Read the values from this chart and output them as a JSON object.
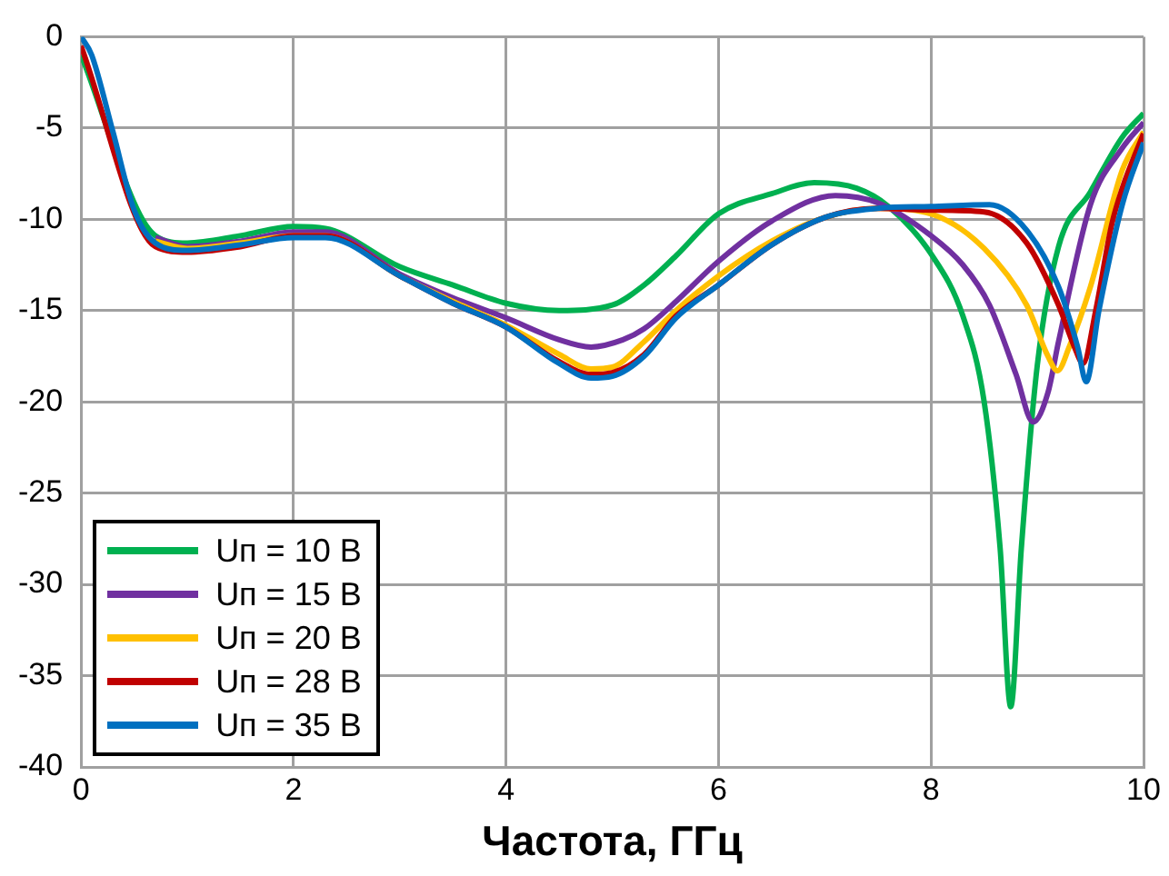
{
  "chart_data": {
    "type": "line",
    "xlabel": "Частота, ГГц",
    "xlim": [
      0,
      10
    ],
    "xticks": [
      0,
      2,
      4,
      6,
      8,
      10
    ],
    "ylim": [
      -40,
      0
    ],
    "yticks": [
      -40,
      -35,
      -30,
      -25,
      -20,
      -15,
      -10,
      -5,
      0
    ],
    "grid": true,
    "legend": "bottom left",
    "marker": "none",
    "line_style": "solid",
    "series": [
      {
        "name": "Uп = 10 В",
        "color": "#00b050",
        "x": [
          0,
          0.7,
          1,
          1.5,
          2,
          2.3,
          3,
          3.5,
          4,
          4.5,
          5,
          5.3,
          5.6,
          6,
          6.5,
          6.9,
          7.3,
          7.6,
          8,
          8.3,
          8.5,
          8.65,
          8.75,
          8.85,
          9,
          9.2,
          9.5,
          9.8,
          10
        ],
        "values": [
          -1,
          -10.9,
          -11.3,
          -10.9,
          -10.4,
          -10.5,
          -12.6,
          -13.6,
          -14.6,
          -15,
          -14.7,
          -13.6,
          -12,
          -9.7,
          -8.6,
          -8,
          -8.3,
          -9.3,
          -11.9,
          -15.3,
          -20,
          -28,
          -36.7,
          -28,
          -18,
          -11.5,
          -8.5,
          -5.5,
          -4.2
        ]
      },
      {
        "name": "Uп = 15 В",
        "color": "#7030a0",
        "x": [
          0.7,
          1,
          1.5,
          2,
          2.3,
          3,
          3.5,
          4,
          4.5,
          4.8,
          5.1,
          5.3,
          5.6,
          6,
          6.5,
          7.1,
          7.5,
          8,
          8.3,
          8.55,
          8.8,
          8.96,
          9.1,
          9.2,
          9.5,
          9.8,
          10
        ],
        "values": [
          -11,
          -11.5,
          -11.2,
          -10.7,
          -10.7,
          -13,
          -14.3,
          -15.4,
          -16.6,
          -17,
          -16.6,
          -16,
          -14.5,
          -12.3,
          -10.1,
          -8.7,
          -9.1,
          -10.9,
          -12.5,
          -14.7,
          -18.5,
          -21.1,
          -19.5,
          -16.7,
          -9.2,
          -6.1,
          -4.7
        ]
      },
      {
        "name": "Uп = 20 В",
        "color": "#ffc000",
        "x": [
          0.7,
          1,
          1.5,
          2,
          2.3,
          3,
          3.5,
          4,
          4.5,
          4.8,
          5,
          5.3,
          5.6,
          6,
          6.5,
          7,
          7.5,
          8,
          8.5,
          8.9,
          9.1,
          9.19,
          9.3,
          9.5,
          9.8,
          10
        ],
        "values": [
          -11.2,
          -11.6,
          -11.3,
          -10.9,
          -10.9,
          -13.1,
          -14.5,
          -15.8,
          -17.4,
          -18.2,
          -18.1,
          -16.7,
          -15,
          -13.1,
          -11.2,
          -9.9,
          -9.4,
          -9.7,
          -11.6,
          -14.7,
          -17.5,
          -18.3,
          -17,
          -13.7,
          -7.3,
          -5.2
        ]
      },
      {
        "name": "Uп = 28 В",
        "color": "#c00000",
        "x": [
          0,
          0.7,
          1,
          1.5,
          2,
          2.3,
          3,
          3.5,
          4,
          4.5,
          4.8,
          5,
          5.3,
          5.6,
          6,
          6.5,
          7,
          7.5,
          8,
          8.5,
          8.9,
          9.2,
          9.35,
          9.43,
          9.55,
          9.7,
          9.8,
          10
        ],
        "values": [
          -0.5,
          -11.5,
          -11.8,
          -11.5,
          -10.9,
          -10.9,
          -13.1,
          -14.6,
          -15.9,
          -17.8,
          -18.5,
          -18.4,
          -17.4,
          -15.3,
          -13.6,
          -11.4,
          -9.9,
          -9.4,
          -9.5,
          -9.6,
          -11.3,
          -14.7,
          -17,
          -17.9,
          -15,
          -10.3,
          -8.3,
          -5.3
        ]
      },
      {
        "name": "Uп = 35 В",
        "color": "#0070c0",
        "x": [
          0,
          0.1,
          0.3,
          0.5,
          0.7,
          1,
          1.5,
          2,
          2.3,
          3,
          3.5,
          4,
          4.5,
          4.8,
          5,
          5.3,
          5.6,
          6,
          6.5,
          7,
          7.5,
          8,
          8.55,
          8.9,
          9.2,
          9.38,
          9.46,
          9.58,
          9.8,
          10
        ],
        "values": [
          0,
          -1,
          -5.2,
          -9.5,
          -11.3,
          -11.7,
          -11.4,
          -11,
          -11,
          -13.1,
          -14.6,
          -15.9,
          -17.9,
          -18.7,
          -18.6,
          -17.5,
          -15.4,
          -13.6,
          -11.4,
          -9.9,
          -9.4,
          -9.3,
          -9.2,
          -10.6,
          -13.7,
          -17,
          -18.9,
          -15,
          -9.2,
          -5.8
        ]
      }
    ]
  }
}
